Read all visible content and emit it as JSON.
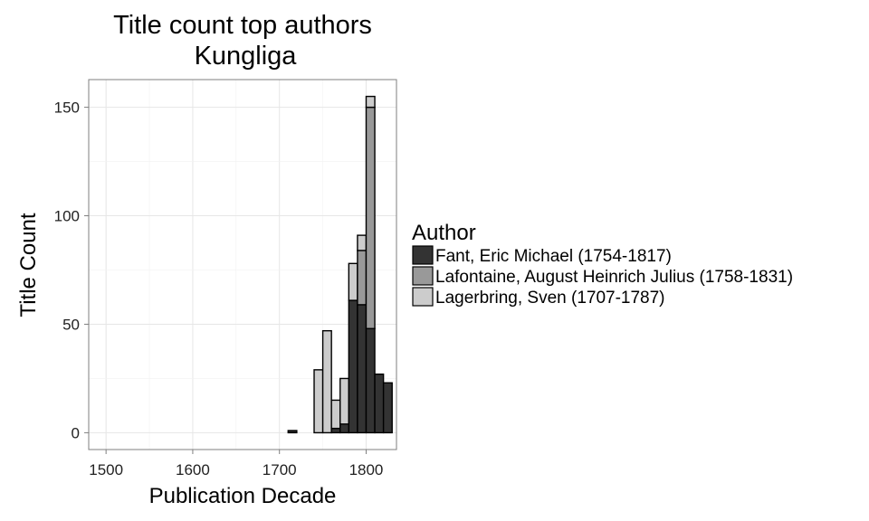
{
  "chart_data": {
    "type": "bar",
    "stacked": true,
    "title_line1": "Title count top authors",
    "title_line2": "Kungliga",
    "xlabel": "Publication Decade",
    "ylabel": "Title Count",
    "xlim": [
      1480,
      1835
    ],
    "ylim": [
      -7.75,
      162.75
    ],
    "x_ticks": [
      1500,
      1600,
      1700,
      1800
    ],
    "y_ticks": [
      0,
      50,
      100,
      150
    ],
    "bin_width": 10,
    "grid": true,
    "legend_title": "Author",
    "legend_position": "right",
    "categories": [
      1710,
      1740,
      1750,
      1760,
      1770,
      1780,
      1790,
      1800,
      1810,
      1820
    ],
    "series": [
      {
        "name": "Fant, Eric Michael (1754-1817)",
        "color": "#333333",
        "values": [
          1,
          0,
          0,
          2,
          4,
          61,
          59,
          48,
          27,
          23
        ]
      },
      {
        "name": "Lafontaine, August Heinrich Julius (1758-1831)",
        "color": "#999999",
        "values": [
          0,
          0,
          0,
          0,
          0,
          0,
          25,
          102,
          0,
          0
        ]
      },
      {
        "name": "Lagerbring, Sven (1707-1787)",
        "color": "#cccccc",
        "values": [
          0,
          29,
          47,
          13,
          21,
          17,
          7,
          5,
          0,
          0
        ]
      }
    ]
  }
}
